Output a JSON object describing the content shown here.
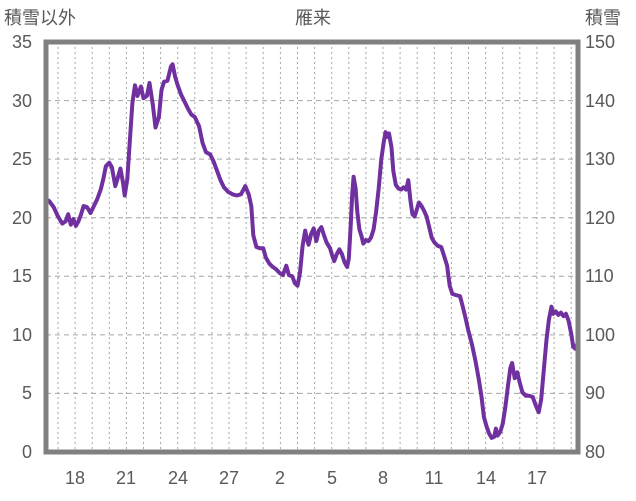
{
  "header": {
    "left_axis_title": "積雪以外",
    "chart_title": "雁来",
    "right_axis_title": "積雪"
  },
  "chart_data": {
    "type": "line",
    "title": "雁来",
    "legend_position": "none",
    "grid": true,
    "left_axis": {
      "label": "積雪以外",
      "range": [
        0,
        35
      ],
      "ticks": [
        0,
        5,
        10,
        15,
        20,
        25,
        30,
        35
      ],
      "gridline_values": [
        5,
        10,
        15,
        20,
        25,
        30
      ]
    },
    "right_axis": {
      "label": "積雪",
      "range": [
        80,
        150
      ],
      "ticks": [
        80,
        90,
        100,
        110,
        120,
        130,
        140,
        150
      ]
    },
    "x_axis": {
      "range": [
        -1.7,
        29.4
      ],
      "gridline_every_day": 1,
      "ticks": [
        {
          "label": "18",
          "day": 0
        },
        {
          "label": "21",
          "day": 3
        },
        {
          "label": "24",
          "day": 6
        },
        {
          "label": "27",
          "day": 9
        },
        {
          "label": "2",
          "day": 12
        },
        {
          "label": "5",
          "day": 15
        },
        {
          "label": "8",
          "day": 18
        },
        {
          "label": "11",
          "day": 21
        },
        {
          "label": "14",
          "day": 24
        },
        {
          "label": "17",
          "day": 27
        }
      ]
    },
    "colors": {
      "line": "#7030A0",
      "border": "#808080",
      "gridline": "#a6a6a6",
      "text": "#595959",
      "background": "#ffffff"
    },
    "series": [
      {
        "name": "雁来",
        "color": "#7030A0",
        "points": [
          [
            -1.7,
            21.6
          ],
          [
            -1.5,
            21.4
          ],
          [
            -1.25,
            20.9
          ],
          [
            -1.0,
            20.1
          ],
          [
            -0.75,
            19.5
          ],
          [
            -0.55,
            19.7
          ],
          [
            -0.4,
            20.3
          ],
          [
            -0.25,
            19.4
          ],
          [
            -0.1,
            19.9
          ],
          [
            0.05,
            19.3
          ],
          [
            0.2,
            19.7
          ],
          [
            0.35,
            20.3
          ],
          [
            0.5,
            21.0
          ],
          [
            0.7,
            20.9
          ],
          [
            0.9,
            20.4
          ],
          [
            1.1,
            21.0
          ],
          [
            1.3,
            21.6
          ],
          [
            1.5,
            22.4
          ],
          [
            1.65,
            23.3
          ],
          [
            1.8,
            24.4
          ],
          [
            2.0,
            24.7
          ],
          [
            2.15,
            24.3
          ],
          [
            2.35,
            22.7
          ],
          [
            2.5,
            23.4
          ],
          [
            2.65,
            24.2
          ],
          [
            2.8,
            23.0
          ],
          [
            2.9,
            21.9
          ],
          [
            3.05,
            23.3
          ],
          [
            3.2,
            26.5
          ],
          [
            3.35,
            29.8
          ],
          [
            3.5,
            31.3
          ],
          [
            3.65,
            30.4
          ],
          [
            3.85,
            31.2
          ],
          [
            4.0,
            30.2
          ],
          [
            4.2,
            30.4
          ],
          [
            4.35,
            31.5
          ],
          [
            4.55,
            29.6
          ],
          [
            4.7,
            27.7
          ],
          [
            4.9,
            28.6
          ],
          [
            5.05,
            30.9
          ],
          [
            5.2,
            31.6
          ],
          [
            5.4,
            31.7
          ],
          [
            5.6,
            32.9
          ],
          [
            5.7,
            33.1
          ],
          [
            5.85,
            32.0
          ],
          [
            6.0,
            31.3
          ],
          [
            6.2,
            30.5
          ],
          [
            6.4,
            29.9
          ],
          [
            6.6,
            29.3
          ],
          [
            6.8,
            28.8
          ],
          [
            7.0,
            28.6
          ],
          [
            7.25,
            27.8
          ],
          [
            7.45,
            26.4
          ],
          [
            7.65,
            25.6
          ],
          [
            7.9,
            25.4
          ],
          [
            8.1,
            24.8
          ],
          [
            8.3,
            24.0
          ],
          [
            8.5,
            23.2
          ],
          [
            8.7,
            22.6
          ],
          [
            8.95,
            22.2
          ],
          [
            9.2,
            22.0
          ],
          [
            9.45,
            21.9
          ],
          [
            9.7,
            22.0
          ],
          [
            9.95,
            22.7
          ],
          [
            10.15,
            22.0
          ],
          [
            10.3,
            21.0
          ],
          [
            10.42,
            18.5
          ],
          [
            10.6,
            17.5
          ],
          [
            10.8,
            17.4
          ],
          [
            11.0,
            17.4
          ],
          [
            11.15,
            16.6
          ],
          [
            11.35,
            16.1
          ],
          [
            11.55,
            15.8
          ],
          [
            11.75,
            15.6
          ],
          [
            11.95,
            15.3
          ],
          [
            12.15,
            15.1
          ],
          [
            12.35,
            15.9
          ],
          [
            12.5,
            15.1
          ],
          [
            12.7,
            15.0
          ],
          [
            12.85,
            14.4
          ],
          [
            13.0,
            14.2
          ],
          [
            13.15,
            15.3
          ],
          [
            13.3,
            17.6
          ],
          [
            13.45,
            18.9
          ],
          [
            13.55,
            18.2
          ],
          [
            13.65,
            17.7
          ],
          [
            13.8,
            18.6
          ],
          [
            13.95,
            19.1
          ],
          [
            14.1,
            18.0
          ],
          [
            14.25,
            18.9
          ],
          [
            14.4,
            19.2
          ],
          [
            14.55,
            18.5
          ],
          [
            14.7,
            17.9
          ],
          [
            14.9,
            17.4
          ],
          [
            15.05,
            16.7
          ],
          [
            15.15,
            16.3
          ],
          [
            15.3,
            16.9
          ],
          [
            15.45,
            17.3
          ],
          [
            15.6,
            16.9
          ],
          [
            15.75,
            16.2
          ],
          [
            15.9,
            15.8
          ],
          [
            16.0,
            16.5
          ],
          [
            16.1,
            19.0
          ],
          [
            16.2,
            22.0
          ],
          [
            16.28,
            23.5
          ],
          [
            16.4,
            22.5
          ],
          [
            16.5,
            20.5
          ],
          [
            16.62,
            19.0
          ],
          [
            16.75,
            18.4
          ],
          [
            16.85,
            17.8
          ],
          [
            17.0,
            18.1
          ],
          [
            17.15,
            18.0
          ],
          [
            17.3,
            18.3
          ],
          [
            17.45,
            19.0
          ],
          [
            17.6,
            20.5
          ],
          [
            17.75,
            22.5
          ],
          [
            17.9,
            25.0
          ],
          [
            18.05,
            26.5
          ],
          [
            18.15,
            27.3
          ],
          [
            18.25,
            26.9
          ],
          [
            18.35,
            27.2
          ],
          [
            18.5,
            26.0
          ],
          [
            18.6,
            24.0
          ],
          [
            18.75,
            22.8
          ],
          [
            18.9,
            22.5
          ],
          [
            19.05,
            22.4
          ],
          [
            19.2,
            22.6
          ],
          [
            19.35,
            22.4
          ],
          [
            19.48,
            23.2
          ],
          [
            19.6,
            21.5
          ],
          [
            19.72,
            20.3
          ],
          [
            19.85,
            20.1
          ],
          [
            20.0,
            20.8
          ],
          [
            20.1,
            21.3
          ],
          [
            20.25,
            21.0
          ],
          [
            20.4,
            20.6
          ],
          [
            20.55,
            20.1
          ],
          [
            20.7,
            19.2
          ],
          [
            20.85,
            18.3
          ],
          [
            21.0,
            17.9
          ],
          [
            21.2,
            17.6
          ],
          [
            21.4,
            17.5
          ],
          [
            21.6,
            16.6
          ],
          [
            21.75,
            15.9
          ],
          [
            21.9,
            14.2
          ],
          [
            22.05,
            13.5
          ],
          [
            22.25,
            13.4
          ],
          [
            22.5,
            13.3
          ],
          [
            22.65,
            12.5
          ],
          [
            22.8,
            11.6
          ],
          [
            23.0,
            10.3
          ],
          [
            23.2,
            9.2
          ],
          [
            23.4,
            7.8
          ],
          [
            23.6,
            6.2
          ],
          [
            23.75,
            4.8
          ],
          [
            23.9,
            3.0
          ],
          [
            24.05,
            2.2
          ],
          [
            24.2,
            1.6
          ],
          [
            24.35,
            1.2
          ],
          [
            24.5,
            1.3
          ],
          [
            24.6,
            2.0
          ],
          [
            24.7,
            1.4
          ],
          [
            24.85,
            1.7
          ],
          [
            25.0,
            2.4
          ],
          [
            25.15,
            3.8
          ],
          [
            25.3,
            5.6
          ],
          [
            25.45,
            7.2
          ],
          [
            25.55,
            7.6
          ],
          [
            25.7,
            6.3
          ],
          [
            25.85,
            6.8
          ],
          [
            26.0,
            5.9
          ],
          [
            26.15,
            5.1
          ],
          [
            26.35,
            4.8
          ],
          [
            26.55,
            4.8
          ],
          [
            26.75,
            4.7
          ],
          [
            26.95,
            3.9
          ],
          [
            27.1,
            3.4
          ],
          [
            27.25,
            4.5
          ],
          [
            27.4,
            7.0
          ],
          [
            27.55,
            9.5
          ],
          [
            27.7,
            11.3
          ],
          [
            27.85,
            12.4
          ],
          [
            27.95,
            11.8
          ],
          [
            28.1,
            12.0
          ],
          [
            28.25,
            11.7
          ],
          [
            28.4,
            11.9
          ],
          [
            28.55,
            11.6
          ],
          [
            28.7,
            11.8
          ],
          [
            28.85,
            11.2
          ],
          [
            29.0,
            10.1
          ],
          [
            29.12,
            9.0
          ],
          [
            29.25,
            8.8
          ],
          [
            29.4,
            9.4
          ]
        ]
      }
    ]
  }
}
